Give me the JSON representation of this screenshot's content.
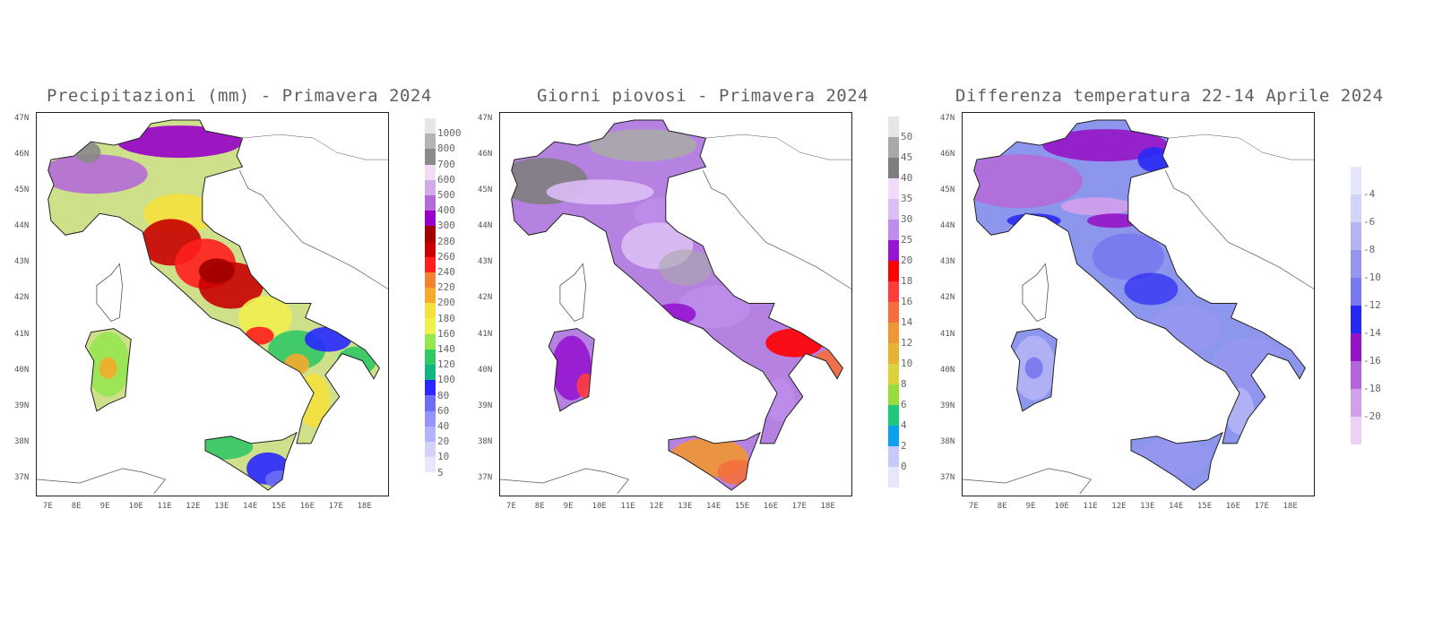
{
  "panels": [
    {
      "title": "Precipitazioni (mm) - Primavera 2024",
      "base_color": "#cfe08a",
      "legend": {
        "labels": [
          "1000",
          "800",
          "700",
          "600",
          "500",
          "400",
          "300",
          "280",
          "260",
          "240",
          "220",
          "200",
          "180",
          "160",
          "140",
          "120",
          "100",
          "80",
          "60",
          "40",
          "20",
          "10",
          "5"
        ],
        "colors": [
          "#e6e6e6",
          "#b4b4b4",
          "#8a8a8a",
          "#efdcf5",
          "#d2aae8",
          "#b46ad7",
          "#9600c8",
          "#a00000",
          "#c80000",
          "#ff1e1e",
          "#f08232",
          "#f5aa2d",
          "#f5e13c",
          "#f0f050",
          "#96e650",
          "#32c864",
          "#14b482",
          "#2828ff",
          "#6e6ef5",
          "#9696fa",
          "#b4b4fa",
          "#d2d2fa",
          "#e6e6fc"
        ],
        "label_first_at_top": true
      }
    },
    {
      "title": "Giorni piovosi - Primavera 2024",
      "base_color": "#b682e2",
      "legend": {
        "labels": [
          "50",
          "45",
          "40",
          "35",
          "30",
          "25",
          "20",
          "18",
          "16",
          "14",
          "12",
          "10",
          "8",
          "6",
          "4",
          "2",
          "0"
        ],
        "colors": [
          "#e6e6e6",
          "#a8a8a8",
          "#7e7e7e",
          "#f0dcfa",
          "#dcbef5",
          "#be8ceb",
          "#9614d2",
          "#ff0000",
          "#ff3c3c",
          "#f56e3c",
          "#f09632",
          "#e6b432",
          "#dcd23c",
          "#96dc3c",
          "#1ec87d",
          "#0aa0f0",
          "#c8c8fa",
          "#e6e6fc"
        ],
        "label_first_at_top": true
      }
    },
    {
      "title": "Differenza temperatura 22-14 Aprile 2024",
      "base_color": "#8c96ec",
      "legend": {
        "labels": [
          "-4",
          "-6",
          "-8",
          "-10",
          "-12",
          "-14",
          "-16",
          "-18",
          "-20"
        ],
        "colors": [
          "#e6e6fc",
          "#d2d2fa",
          "#b4b4f5",
          "#9696f0",
          "#7878f0",
          "#2828f5",
          "#9614c8",
          "#b464dc",
          "#d2a0eb",
          "#ebd2f5"
        ],
        "label_first_at_top": true
      }
    }
  ],
  "axes": {
    "lon_ticks": [
      "7E",
      "8E",
      "9E",
      "10E",
      "11E",
      "12E",
      "13E",
      "14E",
      "15E",
      "16E",
      "17E",
      "18E"
    ],
    "lat_ticks": [
      "47N",
      "46N",
      "45N",
      "44N",
      "43N",
      "42N",
      "41N",
      "40N",
      "39N",
      "38N",
      "37N"
    ]
  },
  "colors": {
    "frame": "#222222",
    "coast": "#222222",
    "borders": "#555555"
  }
}
